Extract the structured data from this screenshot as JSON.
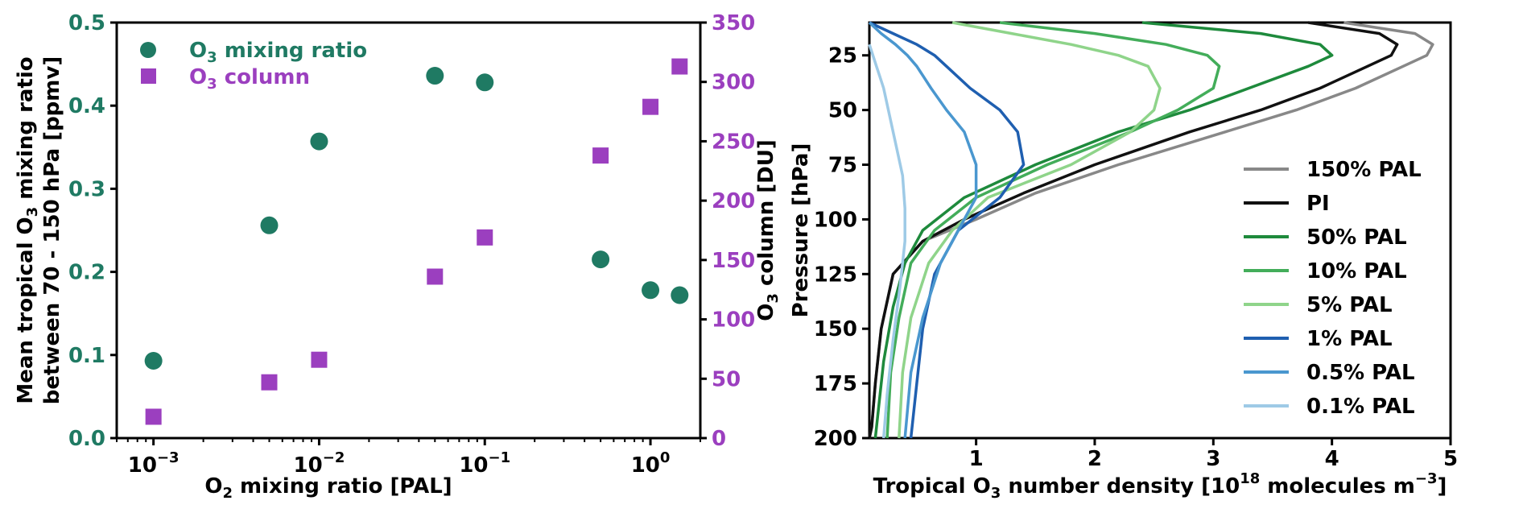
{
  "chart_data": [
    {
      "type": "scatter",
      "xscale": "log",
      "xlabel": "O2 mixing ratio [PAL]",
      "xticks": [
        "10^-3",
        "10^-2",
        "10^-1",
        "10^0"
      ],
      "xlim": [
        0.0006,
        2.0
      ],
      "left_axis": {
        "label": "Mean tropical O3 mixing ratio between 70 - 150 hPa [ppmv]",
        "ylim": [
          0,
          0.5
        ],
        "ticks": [
          "0.0",
          "0.1",
          "0.2",
          "0.3",
          "0.4",
          "0.5"
        ],
        "color": "#1f7a63"
      },
      "right_axis": {
        "label": "O3 column [DU]",
        "ylim": [
          0,
          350
        ],
        "ticks": [
          "0",
          "50",
          "100",
          "150",
          "200",
          "250",
          "300",
          "350"
        ],
        "color": "#9b3fbf"
      },
      "legend_position": "top-left",
      "series": [
        {
          "name": "O3 mixing ratio",
          "marker": "circle",
          "axis": "left",
          "color": "#1f7a63",
          "x": [
            0.001,
            0.005,
            0.01,
            0.05,
            0.1,
            0.5,
            1.0,
            1.5
          ],
          "y": [
            0.093,
            0.256,
            0.357,
            0.436,
            0.428,
            0.215,
            0.178,
            0.172
          ]
        },
        {
          "name": "O3 column",
          "marker": "square",
          "axis": "right",
          "color": "#9b3fbf",
          "x": [
            0.001,
            0.005,
            0.01,
            0.05,
            0.1,
            0.5,
            1.0,
            1.5
          ],
          "y": [
            18,
            47,
            66,
            136,
            169,
            238,
            279,
            313
          ]
        }
      ]
    },
    {
      "type": "line",
      "xlabel": "Tropical O3 number density [10^18 molecules m^-3]",
      "ylabel": "Pressure [hPa]",
      "xlim": [
        0.1,
        5
      ],
      "ylim": [
        200,
        10
      ],
      "xticks": [
        "1",
        "2",
        "3",
        "4",
        "5"
      ],
      "yticks": [
        "25",
        "50",
        "75",
        "100",
        "125",
        "150",
        "175",
        "200"
      ],
      "y_inverted": true,
      "legend_position": "right",
      "series": [
        {
          "name": "150% PAL",
          "color": "#888888",
          "x": [
            4.1,
            4.7,
            4.85,
            4.8,
            4.6,
            4.2,
            3.7,
            3.1,
            2.2,
            1.5,
            1.0,
            0.55,
            0.3,
            0.2,
            0.15,
            0.12,
            0.1
          ],
          "y": [
            10,
            15,
            20,
            25,
            30,
            40,
            50,
            60,
            75,
            88,
            100,
            110,
            125,
            150,
            175,
            195,
            200
          ]
        },
        {
          "name": "PI",
          "color": "#111111",
          "x": [
            3.8,
            4.4,
            4.55,
            4.5,
            4.3,
            3.9,
            3.4,
            2.8,
            2.0,
            1.4,
            0.9,
            0.55,
            0.3,
            0.2,
            0.15,
            0.12,
            0.1
          ],
          "y": [
            10,
            15,
            20,
            25,
            30,
            40,
            50,
            60,
            75,
            88,
            100,
            110,
            125,
            150,
            175,
            195,
            200
          ]
        },
        {
          "name": "50% PAL",
          "color": "#1e8a3c",
          "x": [
            2.4,
            3.4,
            3.9,
            4.0,
            3.8,
            3.3,
            2.8,
            2.2,
            1.5,
            0.9,
            0.55,
            0.4,
            0.3,
            0.22,
            0.18,
            0.15
          ],
          "y": [
            10,
            15,
            20,
            25,
            30,
            40,
            50,
            60,
            75,
            90,
            105,
            120,
            140,
            165,
            185,
            200
          ]
        },
        {
          "name": "10% PAL",
          "color": "#43ad5a",
          "x": [
            1.2,
            2.0,
            2.6,
            2.95,
            3.05,
            3.0,
            2.7,
            2.3,
            1.6,
            1.0,
            0.65,
            0.45,
            0.35,
            0.28,
            0.25
          ],
          "y": [
            10,
            15,
            20,
            25,
            30,
            40,
            50,
            60,
            75,
            90,
            105,
            120,
            145,
            170,
            200
          ]
        },
        {
          "name": "5% PAL",
          "color": "#8fd48a",
          "x": [
            0.8,
            1.3,
            1.8,
            2.2,
            2.45,
            2.55,
            2.5,
            2.3,
            1.8,
            1.1,
            0.8,
            0.6,
            0.45,
            0.38,
            0.35
          ],
          "y": [
            10,
            15,
            20,
            25,
            30,
            40,
            50,
            60,
            75,
            90,
            105,
            120,
            145,
            170,
            200
          ]
        },
        {
          "name": "1% PAL",
          "color": "#1f5fb0",
          "x": [
            0.1,
            0.3,
            0.5,
            0.65,
            0.75,
            0.95,
            1.2,
            1.35,
            1.4,
            1.2,
            0.85,
            0.65,
            0.55,
            0.5,
            0.45
          ],
          "y": [
            10,
            15,
            20,
            25,
            30,
            40,
            50,
            60,
            75,
            90,
            105,
            125,
            150,
            175,
            200
          ]
        },
        {
          "name": "0.5% PAL",
          "color": "#4a97cf",
          "x": [
            0.1,
            0.2,
            0.32,
            0.42,
            0.5,
            0.62,
            0.75,
            0.9,
            1.0,
            1.0,
            0.85,
            0.7,
            0.55,
            0.45,
            0.4
          ],
          "y": [
            10,
            15,
            20,
            25,
            30,
            40,
            50,
            60,
            75,
            90,
            105,
            120,
            145,
            170,
            200
          ]
        },
        {
          "name": "0.1% PAL",
          "color": "#9ecae6",
          "x": [
            0.1,
            0.13,
            0.16,
            0.19,
            0.22,
            0.26,
            0.3,
            0.34,
            0.38,
            0.4,
            0.4,
            0.36,
            0.3,
            0.25,
            0.22
          ],
          "y": [
            20,
            25,
            30,
            35,
            40,
            50,
            60,
            70,
            80,
            95,
            110,
            130,
            155,
            180,
            200
          ]
        }
      ]
    }
  ]
}
